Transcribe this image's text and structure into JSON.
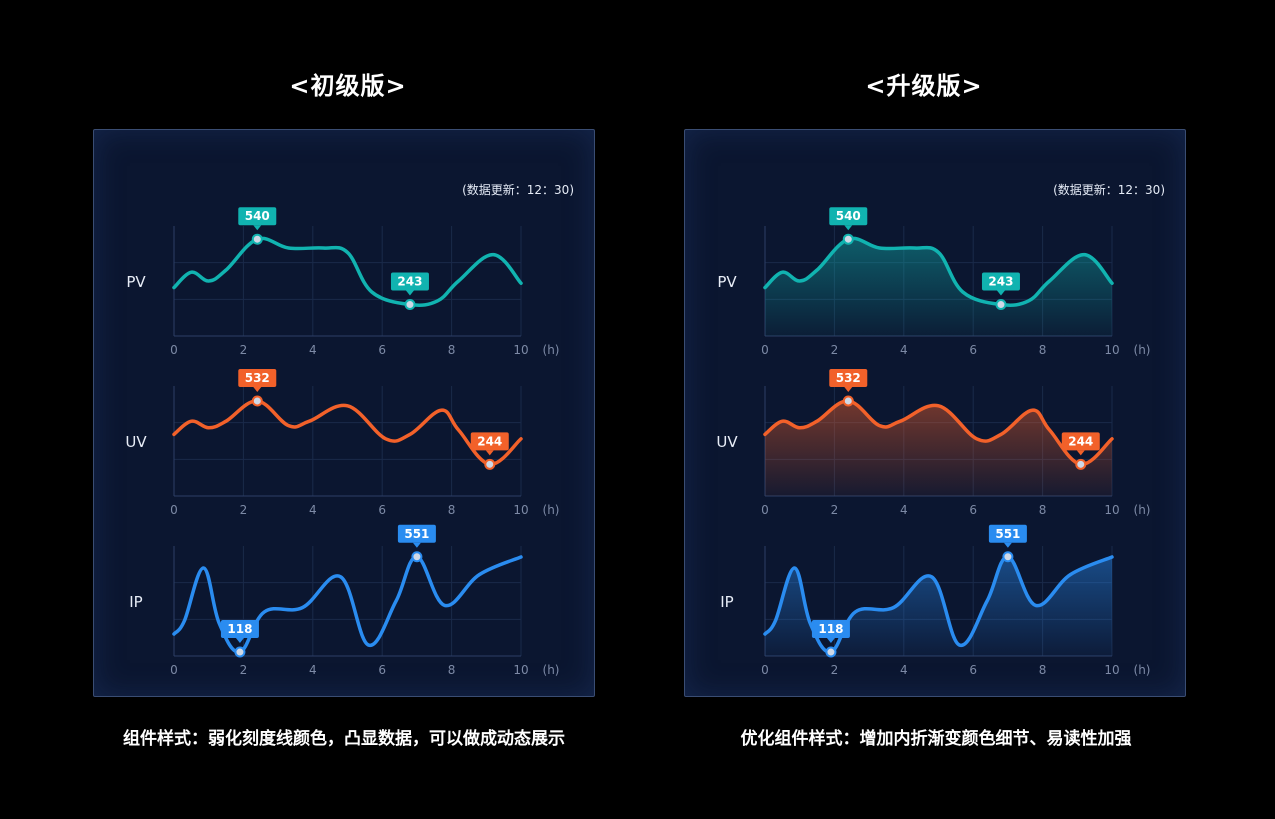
{
  "left": {
    "title": "<初级版>",
    "update": "(数据更新：12：30)",
    "caption": "组件样式：弱化刻度线颜色，凸显数据，可以做成动态展示"
  },
  "right": {
    "title": "<升级版>",
    "update": "(数据更新：12：30)",
    "caption": "优化组件样式：增加内折渐变颜色细节、易读性加强"
  },
  "colors": {
    "pv": "#11b3b0",
    "uv": "#f2612a",
    "ip": "#2a8cf0"
  },
  "chart_data": [
    {
      "type": "line",
      "panel": "left",
      "x_ticks": [
        "0",
        "2",
        "4",
        "6",
        "8",
        "10"
      ],
      "x_unit": "(h)",
      "xlim": [
        0,
        10
      ],
      "series": [
        {
          "name": "PV",
          "x": [
            0,
            0.5,
            1.0,
            1.5,
            2.4,
            3.3,
            4.3,
            5.0,
            5.7,
            6.8,
            7.6,
            8.2,
            9.2,
            10
          ],
          "y": [
            320,
            390,
            350,
            400,
            540,
            500,
            500,
            480,
            300,
            243,
            260,
            350,
            470,
            340
          ],
          "labels": [
            {
              "x": 2.4,
              "y": 540,
              "text": "540"
            },
            {
              "x": 6.8,
              "y": 243,
              "text": "243"
            }
          ]
        },
        {
          "name": "UV",
          "x": [
            0,
            0.5,
            1.0,
            1.5,
            2.4,
            3.3,
            3.9,
            5.0,
            6.1,
            6.8,
            7.7,
            8.2,
            9.1,
            10
          ],
          "y": [
            380,
            440,
            410,
            440,
            532,
            420,
            440,
            510,
            360,
            380,
            490,
            400,
            244,
            360
          ],
          "labels": [
            {
              "x": 2.4,
              "y": 532,
              "text": "532"
            },
            {
              "x": 9.1,
              "y": 244,
              "text": "244"
            }
          ]
        },
        {
          "name": "IP",
          "x": [
            0,
            0.3,
            0.85,
            1.3,
            1.9,
            2.6,
            3.7,
            4.8,
            5.6,
            6.4,
            7.0,
            7.8,
            8.8,
            10
          ],
          "y": [
            200,
            260,
            500,
            250,
            118,
            300,
            320,
            460,
            150,
            350,
            551,
            330,
            470,
            550
          ],
          "labels": [
            {
              "x": 1.9,
              "y": 118,
              "text": "118"
            },
            {
              "x": 7.0,
              "y": 551,
              "text": "551"
            }
          ]
        }
      ],
      "fill": false
    },
    {
      "type": "area",
      "panel": "right",
      "x_ticks": [
        "0",
        "2",
        "4",
        "6",
        "8",
        "10"
      ],
      "x_unit": "(h)",
      "xlim": [
        0,
        10
      ],
      "series": [
        {
          "name": "PV",
          "x": [
            0,
            0.5,
            1.0,
            1.5,
            2.4,
            3.3,
            4.3,
            5.0,
            5.7,
            6.8,
            7.6,
            8.2,
            9.2,
            10
          ],
          "y": [
            320,
            390,
            350,
            400,
            540,
            500,
            500,
            480,
            300,
            243,
            260,
            350,
            470,
            340
          ],
          "labels": [
            {
              "x": 2.4,
              "y": 540,
              "text": "540"
            },
            {
              "x": 6.8,
              "y": 243,
              "text": "243"
            }
          ]
        },
        {
          "name": "UV",
          "x": [
            0,
            0.5,
            1.0,
            1.5,
            2.4,
            3.3,
            3.9,
            5.0,
            6.1,
            6.8,
            7.7,
            8.2,
            9.1,
            10
          ],
          "y": [
            380,
            440,
            410,
            440,
            532,
            420,
            440,
            510,
            360,
            380,
            490,
            400,
            244,
            360
          ],
          "labels": [
            {
              "x": 2.4,
              "y": 532,
              "text": "532"
            },
            {
              "x": 9.1,
              "y": 244,
              "text": "244"
            }
          ]
        },
        {
          "name": "IP",
          "x": [
            0,
            0.3,
            0.85,
            1.3,
            1.9,
            2.6,
            3.7,
            4.8,
            5.6,
            6.4,
            7.0,
            7.8,
            8.8,
            10
          ],
          "y": [
            200,
            260,
            500,
            250,
            118,
            300,
            320,
            460,
            150,
            350,
            551,
            330,
            470,
            550
          ],
          "labels": [
            {
              "x": 1.9,
              "y": 118,
              "text": "118"
            },
            {
              "x": 7.0,
              "y": 551,
              "text": "551"
            }
          ]
        }
      ],
      "fill": true
    }
  ]
}
